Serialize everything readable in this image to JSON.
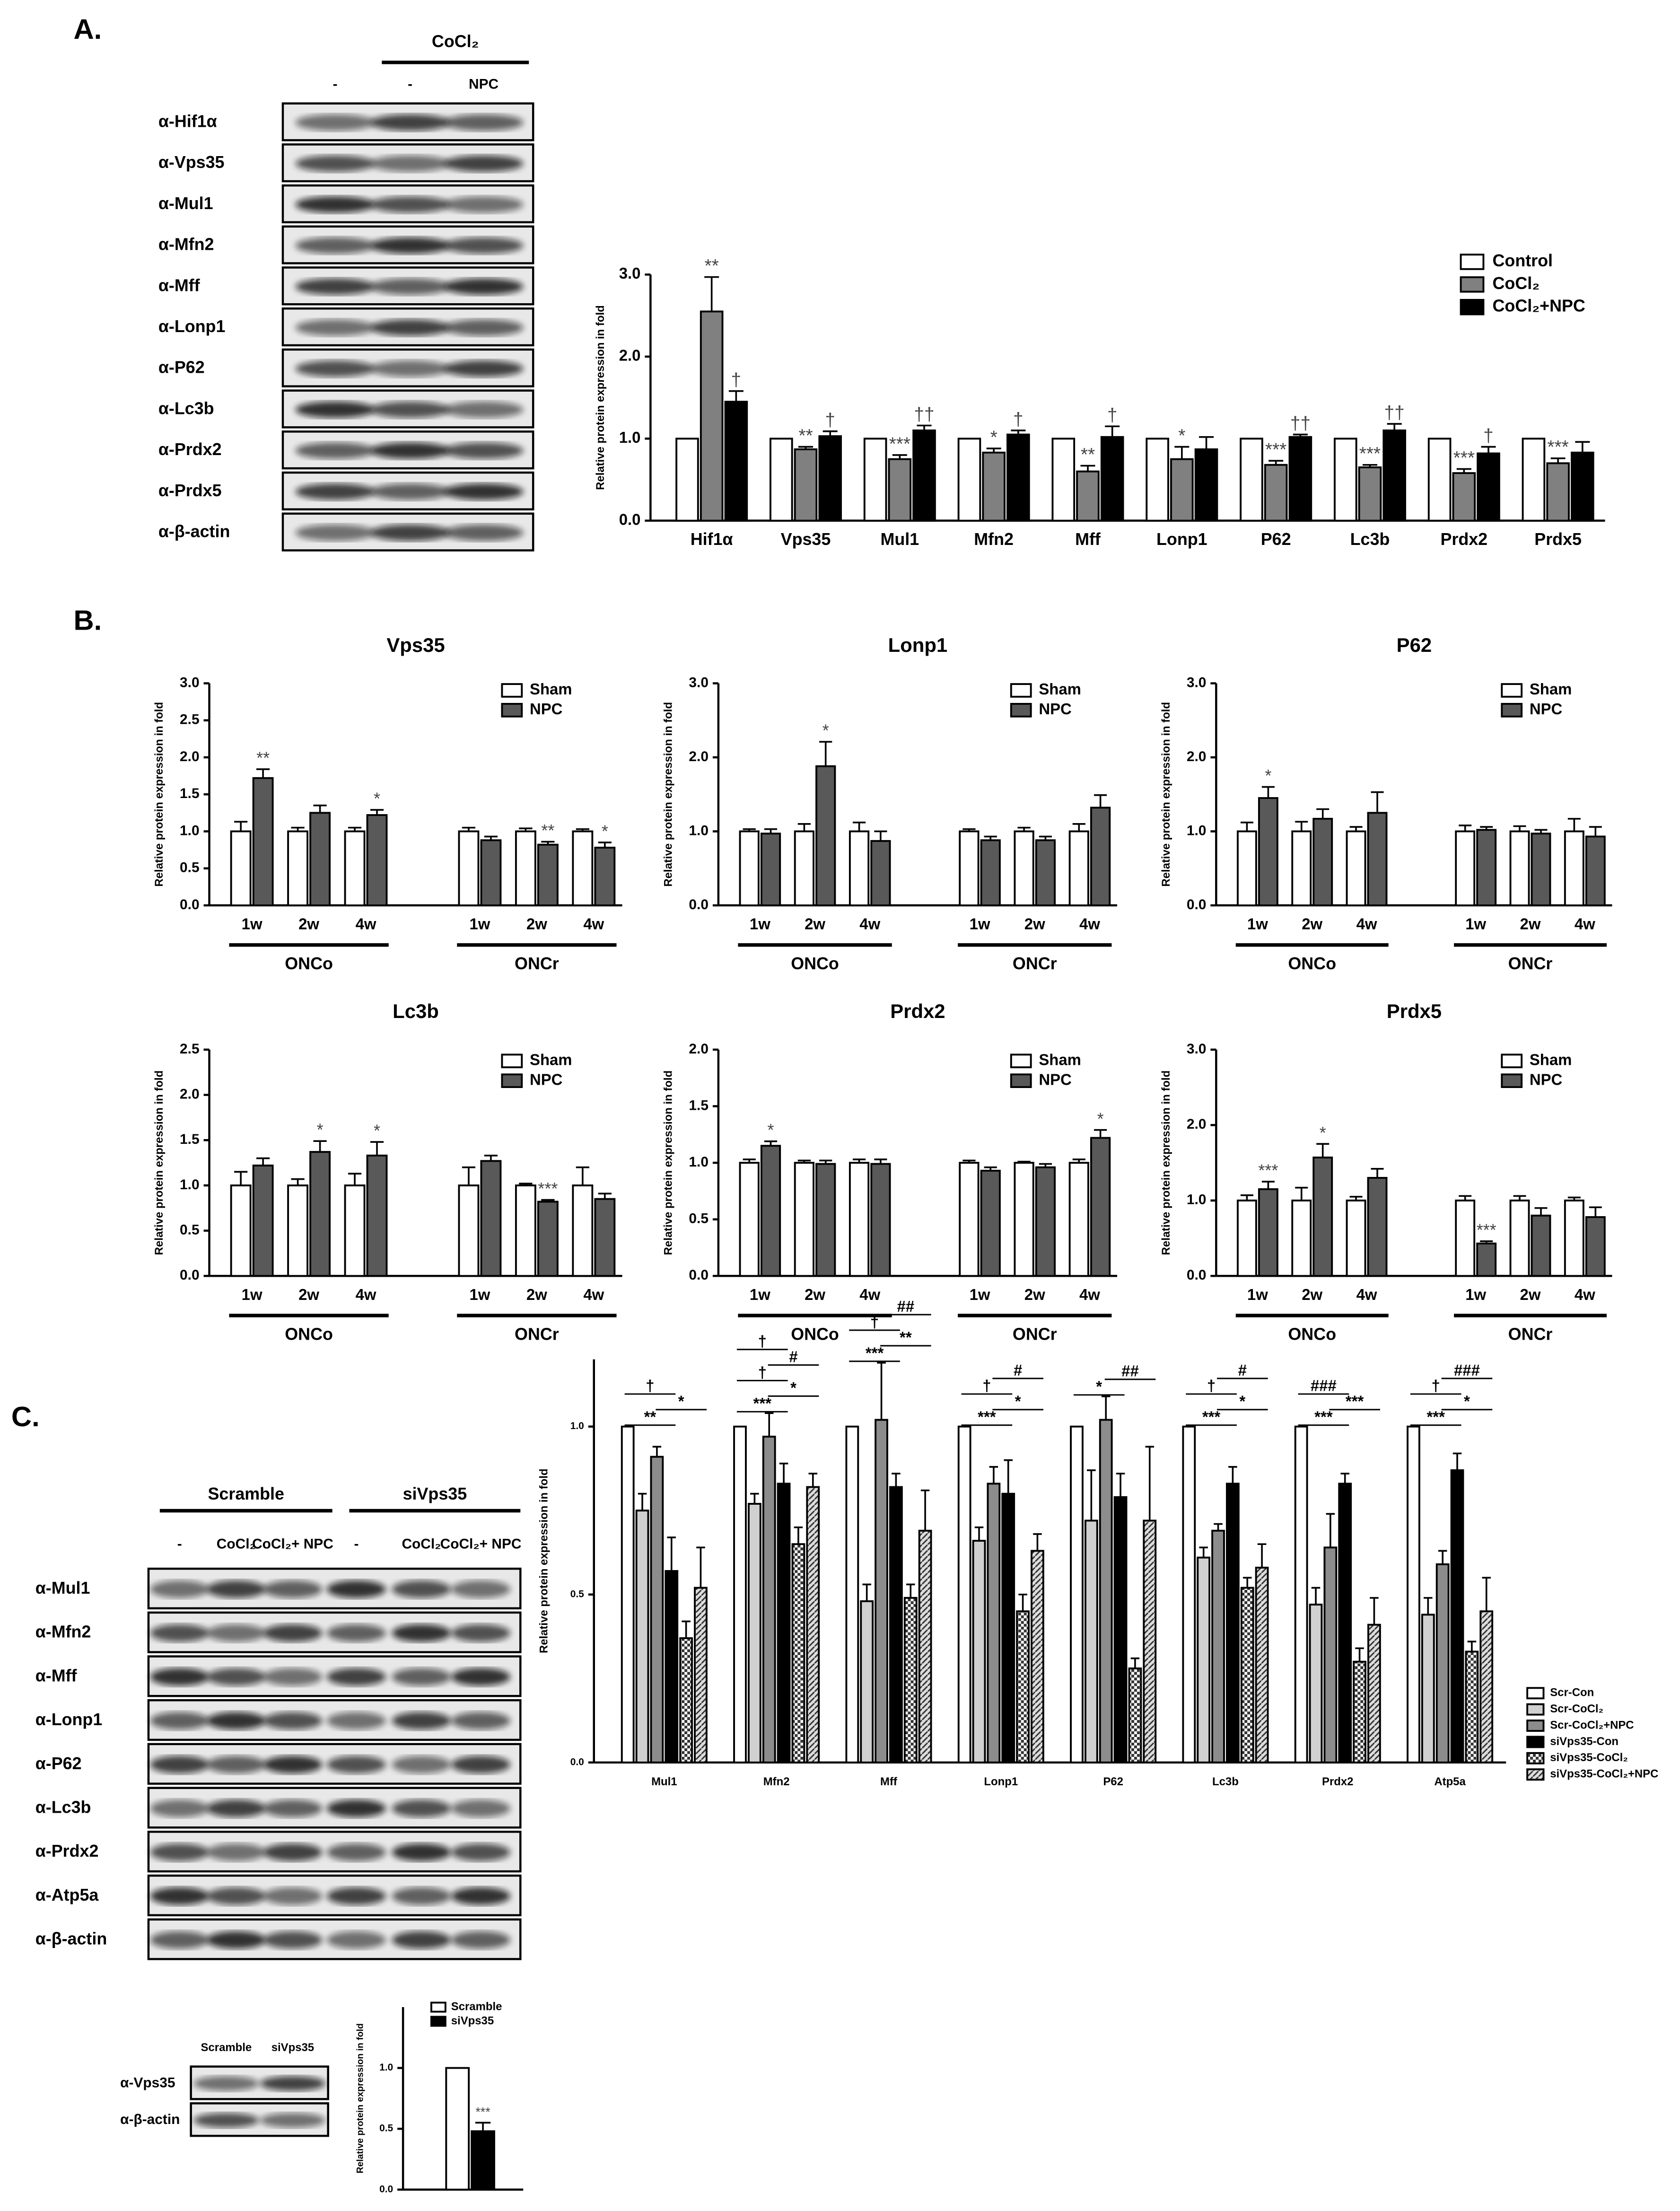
{
  "panel_labels": [
    "A.",
    "B.",
    "C."
  ],
  "blot_a": {
    "treatment": "CoCl₂",
    "lanes": [
      "-",
      "-",
      "NPC"
    ],
    "rows": [
      "α-Hif1α",
      "α-Vps35",
      "α-Mul1",
      "α-Mfn2",
      "α-Mff",
      "α-Lonp1",
      "α-P62",
      "α-Lc3b",
      "α-Prdx2",
      "α-Prdx5",
      "α-β-actin"
    ]
  },
  "blot_c": {
    "groups": [
      "Scramble",
      "siVps35"
    ],
    "lanes": [
      "-",
      "CoCl₂",
      "CoCl₂+ NPC",
      "-",
      "CoCl₂",
      "CoCl₂+ NPC"
    ],
    "rows": [
      "α-Mul1",
      "α-Mfn2",
      "α-Mff",
      "α-Lonp1",
      "α-P62",
      "α-Lc3b",
      "α-Prdx2",
      "α-Atp5a",
      "α-β-actin"
    ]
  },
  "blot_c_small": {
    "lanes": [
      "Scramble",
      "siVps35"
    ],
    "rows": [
      "α-Vps35",
      "α-β-actin"
    ]
  },
  "chart_data": [
    {
      "type": "bar",
      "y_label": "Relative protein expression in fold",
      "legend": "upper right",
      "categories": [
        "Hif1α",
        "Vps35",
        "Mul1",
        "Mfn2",
        "Mff",
        "Lonp1",
        "P62",
        "Lc3b",
        "Prdx2",
        "Prdx5"
      ],
      "ylim": [
        0,
        3
      ],
      "yticks": [
        {
          "value": 0,
          "label": "0.0"
        },
        {
          "value": 1,
          "label": "1.0"
        },
        {
          "value": 2,
          "label": "2.0"
        },
        {
          "value": 3,
          "label": "3.0"
        }
      ],
      "series": [
        {
          "name": "Control",
          "color": "#ffffff",
          "values": [
            1,
            1,
            1,
            1,
            1,
            1,
            1,
            1,
            1,
            1
          ]
        },
        {
          "name": "CoCl₂",
          "color": "#808080",
          "values": [
            2.55,
            0.87,
            0.75,
            0.83,
            0.6,
            0.75,
            0.68,
            0.65,
            0.58,
            0.7
          ],
          "errors": [
            0.42,
            0.03,
            0.05,
            0.05,
            0.07,
            0.15,
            0.05,
            0.03,
            0.05,
            0.06
          ],
          "annotations": [
            "**",
            "**",
            "***",
            "*",
            "**",
            "*",
            "***",
            "***",
            "***",
            "***"
          ]
        },
        {
          "name": "CoCl₂+NPC",
          "color": "#000000",
          "values": [
            1.45,
            1.03,
            1.1,
            1.05,
            1.02,
            0.87,
            1.02,
            1.1,
            0.82,
            0.83
          ],
          "errors": [
            0.13,
            0.06,
            0.06,
            0.05,
            0.13,
            0.15,
            0.03,
            0.08,
            0.08,
            0.13
          ],
          "annotations": [
            "†",
            "†",
            "††",
            "†",
            "†",
            null,
            "††",
            "††",
            "†",
            null
          ]
        }
      ]
    },
    {
      "type": "bar",
      "title": "Vps35",
      "y_label": "Relative protein expression in fold",
      "legend": "upper right",
      "groups": [
        "ONCo",
        "ONCr"
      ],
      "categories": [
        "1w",
        "2w",
        "4w",
        "1w",
        "2w",
        "4w"
      ],
      "ylim": [
        0,
        3
      ],
      "yticks": [
        {
          "value": 0,
          "label": "0.0"
        },
        {
          "value": 0.5,
          "label": "0.5"
        },
        {
          "value": 1,
          "label": "1.0"
        },
        {
          "value": 1.5,
          "label": "1.5"
        },
        {
          "value": 2,
          "label": "2.0"
        },
        {
          "value": 2.5,
          "label": "2.5"
        },
        {
          "value": 3,
          "label": "3.0"
        }
      ],
      "series": [
        {
          "name": "Sham",
          "color": "#ffffff",
          "values": [
            1,
            1,
            1,
            1,
            1,
            1
          ],
          "errors": [
            0.13,
            0.05,
            0.05,
            0.05,
            0.04,
            0.03
          ]
        },
        {
          "name": "NPC",
          "color": "#595959",
          "values": [
            1.72,
            1.25,
            1.22,
            0.88,
            0.82,
            0.78
          ],
          "errors": [
            0.12,
            0.1,
            0.07,
            0.05,
            0.04,
            0.07
          ],
          "annotations": [
            "**",
            null,
            "*",
            null,
            "**",
            "*"
          ]
        }
      ]
    },
    {
      "type": "bar",
      "title": "Lonp1",
      "y_label": "Relative protein expression in fold",
      "legend": "upper right",
      "groups": [
        "ONCo",
        "ONCr"
      ],
      "categories": [
        "1w",
        "2w",
        "4w",
        "1w",
        "2w",
        "4w"
      ],
      "ylim": [
        0,
        3
      ],
      "yticks": [
        {
          "value": 0,
          "label": "0.0"
        },
        {
          "value": 1,
          "label": "1.0"
        },
        {
          "value": 2,
          "label": "2.0"
        },
        {
          "value": 3,
          "label": "3.0"
        }
      ],
      "series": [
        {
          "name": "Sham",
          "color": "#ffffff",
          "values": [
            1,
            1,
            1,
            1,
            1,
            1
          ],
          "errors": [
            0.03,
            0.1,
            0.12,
            0.03,
            0.05,
            0.1
          ]
        },
        {
          "name": "NPC",
          "color": "#595959",
          "values": [
            0.97,
            1.88,
            0.87,
            0.88,
            0.88,
            1.32
          ],
          "errors": [
            0.06,
            0.33,
            0.13,
            0.05,
            0.05,
            0.17
          ],
          "annotations": [
            null,
            "*",
            null,
            null,
            null,
            null
          ]
        }
      ]
    },
    {
      "type": "bar",
      "title": "P62",
      "y_label": "Relative protein expression in fold",
      "legend": "upper right",
      "groups": [
        "ONCo",
        "ONCr"
      ],
      "categories": [
        "1w",
        "2w",
        "4w",
        "1w",
        "2w",
        "4w"
      ],
      "ylim": [
        0,
        3
      ],
      "yticks": [
        {
          "value": 0,
          "label": "0.0"
        },
        {
          "value": 1,
          "label": "1.0"
        },
        {
          "value": 2,
          "label": "2.0"
        },
        {
          "value": 3,
          "label": "3.0"
        }
      ],
      "series": [
        {
          "name": "Sham",
          "color": "#ffffff",
          "values": [
            1,
            1,
            1,
            1,
            1,
            1
          ],
          "errors": [
            0.12,
            0.13,
            0.06,
            0.08,
            0.07,
            0.17
          ]
        },
        {
          "name": "NPC",
          "color": "#595959",
          "values": [
            1.45,
            1.17,
            1.25,
            1.02,
            0.97,
            0.93
          ],
          "errors": [
            0.15,
            0.13,
            0.28,
            0.04,
            0.05,
            0.13
          ],
          "annotations": [
            "*",
            null,
            null,
            null,
            null,
            null
          ]
        }
      ]
    },
    {
      "type": "bar",
      "title": "Lc3b",
      "y_label": "Relative protein expression in fold",
      "legend": "upper right",
      "groups": [
        "ONCo",
        "ONCr"
      ],
      "categories": [
        "1w",
        "2w",
        "4w",
        "1w",
        "2w",
        "4w"
      ],
      "ylim": [
        0,
        2.5
      ],
      "yticks": [
        {
          "value": 0,
          "label": "0.0"
        },
        {
          "value": 0.5,
          "label": "0.5"
        },
        {
          "value": 1,
          "label": "1.0"
        },
        {
          "value": 1.5,
          "label": "1.5"
        },
        {
          "value": 2,
          "label": "2.0"
        },
        {
          "value": 2.5,
          "label": "2.5"
        }
      ],
      "series": [
        {
          "name": "Sham",
          "color": "#ffffff",
          "values": [
            1,
            1,
            1,
            1,
            1,
            1
          ],
          "errors": [
            0.15,
            0.07,
            0.13,
            0.2,
            0.02,
            0.2
          ]
        },
        {
          "name": "NPC",
          "color": "#595959",
          "values": [
            1.22,
            1.37,
            1.33,
            1.27,
            0.82,
            0.85
          ],
          "errors": [
            0.08,
            0.12,
            0.15,
            0.06,
            0.02,
            0.06
          ],
          "annotations": [
            null,
            "*",
            "*",
            null,
            "***",
            null
          ]
        }
      ]
    },
    {
      "type": "bar",
      "title": "Prdx2",
      "y_label": "Relative protein expression in fold",
      "legend": "upper right",
      "groups": [
        "ONCo",
        "ONCr"
      ],
      "categories": [
        "1w",
        "2w",
        "4w",
        "1w",
        "2w",
        "4w"
      ],
      "ylim": [
        0,
        2
      ],
      "yticks": [
        {
          "value": 0,
          "label": "0.0"
        },
        {
          "value": 0.5,
          "label": "0.5"
        },
        {
          "value": 1,
          "label": "1.0"
        },
        {
          "value": 1.5,
          "label": "1.5"
        },
        {
          "value": 2,
          "label": "2.0"
        }
      ],
      "series": [
        {
          "name": "Sham",
          "color": "#ffffff",
          "values": [
            1,
            1,
            1,
            1,
            1,
            1
          ],
          "errors": [
            0.03,
            0.02,
            0.03,
            0.02,
            0.01,
            0.03
          ]
        },
        {
          "name": "NPC",
          "color": "#595959",
          "values": [
            1.15,
            0.99,
            0.99,
            0.93,
            0.96,
            1.22
          ],
          "errors": [
            0.04,
            0.03,
            0.04,
            0.03,
            0.03,
            0.07
          ],
          "annotations": [
            "*",
            null,
            null,
            null,
            null,
            "*"
          ]
        }
      ]
    },
    {
      "type": "bar",
      "title": "Prdx5",
      "y_label": "Relative protein expression in fold",
      "legend": "upper right",
      "groups": [
        "ONCo",
        "ONCr"
      ],
      "categories": [
        "1w",
        "2w",
        "4w",
        "1w",
        "2w",
        "4w"
      ],
      "ylim": [
        0,
        3
      ],
      "yticks": [
        {
          "value": 0,
          "label": "0.0"
        },
        {
          "value": 1,
          "label": "1.0"
        },
        {
          "value": 2,
          "label": "2.0"
        },
        {
          "value": 3,
          "label": "3.0"
        }
      ],
      "series": [
        {
          "name": "Sham",
          "color": "#ffffff",
          "values": [
            1,
            1,
            1,
            1,
            1,
            1
          ],
          "errors": [
            0.07,
            0.17,
            0.05,
            0.06,
            0.06,
            0.04
          ]
        },
        {
          "name": "NPC",
          "color": "#595959",
          "values": [
            1.15,
            1.57,
            1.3,
            0.43,
            0.8,
            0.78
          ],
          "errors": [
            0.1,
            0.18,
            0.12,
            0.03,
            0.1,
            0.13
          ],
          "annotations": [
            "***",
            "*",
            null,
            "***",
            null,
            null
          ]
        }
      ]
    },
    {
      "type": "bar",
      "y_label": "Relative protein expression in fold",
      "legend": "right",
      "categories": [
        "Mul1",
        "Mfn2",
        "Mff",
        "Lonp1",
        "P62",
        "Lc3b",
        "Prdx2",
        "Atp5a"
      ],
      "ylim": [
        0,
        1.2
      ],
      "yticks": [
        {
          "value": 0,
          "label": "0.0"
        },
        {
          "value": 0.5,
          "label": "0.5"
        },
        {
          "value": 1,
          "label": "1.0"
        }
      ],
      "annotations": [
        [
          "**",
          "*",
          "†"
        ],
        [
          "***",
          "*",
          "†",
          "#",
          "†"
        ],
        [
          "***",
          "**",
          "†",
          "##"
        ],
        [
          "***",
          "*",
          "†",
          "#"
        ],
        [
          "*",
          "##"
        ],
        [
          "***",
          "*",
          "†",
          "#"
        ],
        [
          "***",
          "***",
          "###"
        ],
        [
          "***",
          "*",
          "†",
          "###"
        ]
      ],
      "series": [
        {
          "name": "Scr-Con",
          "color": "#ffffff",
          "values": [
            1,
            1,
            1,
            1,
            1,
            1,
            1,
            1
          ]
        },
        {
          "name": "Scr-CoCl₂",
          "color": "#d0d0d0",
          "values": [
            0.75,
            0.77,
            0.48,
            0.66,
            0.72,
            0.61,
            0.47,
            0.44
          ],
          "errors": [
            0.05,
            0.03,
            0.05,
            0.04,
            0.15,
            0.03,
            0.05,
            0.05
          ]
        },
        {
          "name": "Scr-CoCl₂+NPC",
          "color": "#8c8c8c",
          "values": [
            0.91,
            0.97,
            1.02,
            0.83,
            1.02,
            0.69,
            0.64,
            0.59
          ],
          "errors": [
            0.03,
            0.07,
            0.17,
            0.05,
            0.07,
            0.02,
            0.1,
            0.04
          ]
        },
        {
          "name": "siVps35-Con",
          "color": "#000000",
          "values": [
            0.57,
            0.83,
            0.82,
            0.8,
            0.79,
            0.83,
            0.83,
            0.87
          ],
          "errors": [
            0.1,
            0.06,
            0.04,
            0.1,
            0.07,
            0.05,
            0.03,
            0.05
          ]
        },
        {
          "name": "siVps35-CoCl₂",
          "color": "#ffffff",
          "hatch": "checker",
          "values": [
            0.37,
            0.65,
            0.49,
            0.45,
            0.28,
            0.52,
            0.3,
            0.33
          ],
          "errors": [
            0.05,
            0.05,
            0.04,
            0.05,
            0.03,
            0.03,
            0.04,
            0.03
          ]
        },
        {
          "name": "siVps35-CoCl₂+NPC",
          "color": "#ffffff",
          "hatch": "diagonal",
          "values": [
            0.52,
            0.82,
            0.69,
            0.63,
            0.72,
            0.58,
            0.41,
            0.45
          ],
          "errors": [
            0.12,
            0.04,
            0.12,
            0.05,
            0.22,
            0.07,
            0.08,
            0.1
          ]
        }
      ]
    },
    {
      "type": "bar",
      "y_label": "Relative protein expression in fold",
      "legend": "upper right",
      "categories": [
        null
      ],
      "ylim": [
        0,
        1.5
      ],
      "yticks": [
        {
          "value": 0,
          "label": "0.0"
        },
        {
          "value": 0.5,
          "label": "0.5"
        },
        {
          "value": 1,
          "label": "1.0"
        }
      ],
      "series": [
        {
          "name": "Scramble",
          "color": "#ffffff",
          "values": [
            1
          ]
        },
        {
          "name": "siVps35",
          "color": "#000000",
          "values": [
            0.48
          ],
          "errors": [
            0.07
          ],
          "annotations": [
            "***"
          ]
        }
      ]
    }
  ]
}
